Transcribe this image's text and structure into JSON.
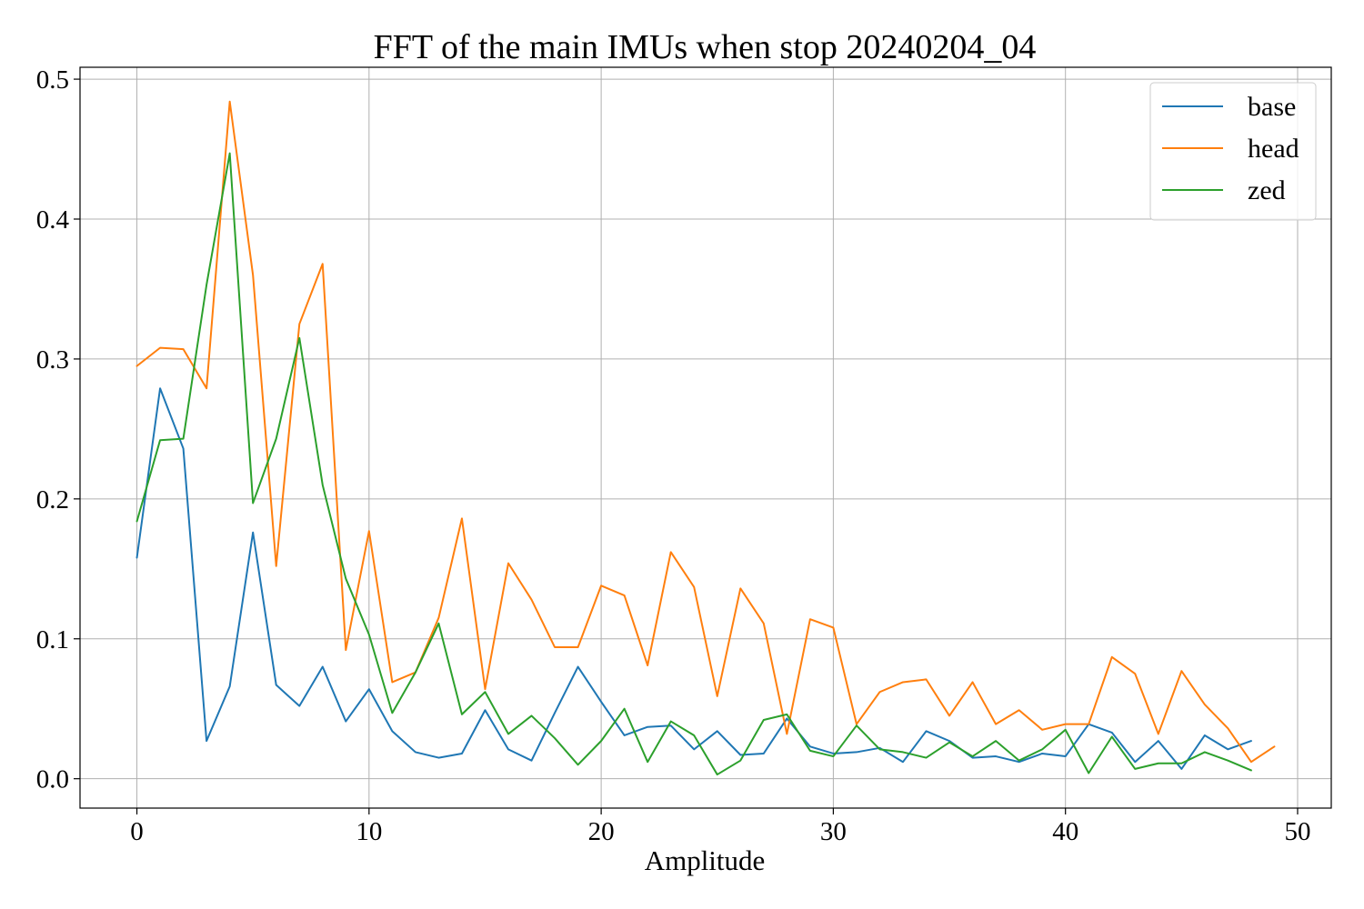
{
  "chart_data": {
    "type": "line",
    "title": "FFT of the main IMUs when stop 20240204_04",
    "xlabel": "Amplitude",
    "ylabel": "",
    "xlim": [
      -2.45,
      51.45
    ],
    "ylim": [
      -0.021,
      0.5085
    ],
    "xticks": [
      0,
      10,
      20,
      30,
      40,
      50
    ],
    "yticks": [
      0.0,
      0.1,
      0.2,
      0.3,
      0.4,
      0.5
    ],
    "ytick_labels": [
      "0.0",
      "0.1",
      "0.2",
      "0.3",
      "0.4",
      "0.5"
    ],
    "grid": true,
    "legend_position": "top-right",
    "series": [
      {
        "name": "base",
        "color": "#1f77b4",
        "x": [
          0,
          1,
          2,
          3,
          4,
          5,
          6,
          7,
          8,
          9,
          10,
          11,
          12,
          13,
          14,
          15,
          16,
          17,
          18,
          19,
          20,
          21,
          22,
          23,
          24,
          25,
          26,
          27,
          28,
          29,
          30,
          31,
          32,
          33,
          34,
          35,
          36,
          37,
          38,
          39,
          40,
          41,
          42,
          43,
          44,
          45,
          46,
          47,
          48
        ],
        "y": [
          0.158,
          0.279,
          0.236,
          0.027,
          0.066,
          0.176,
          0.067,
          0.052,
          0.08,
          0.041,
          0.064,
          0.034,
          0.019,
          0.015,
          0.018,
          0.049,
          0.021,
          0.013,
          0.047,
          0.08,
          0.055,
          0.031,
          0.037,
          0.038,
          0.021,
          0.034,
          0.017,
          0.018,
          0.043,
          0.023,
          0.018,
          0.019,
          0.022,
          0.012,
          0.034,
          0.027,
          0.015,
          0.016,
          0.012,
          0.018,
          0.016,
          0.039,
          0.033,
          0.012,
          0.027,
          0.007,
          0.031,
          0.021,
          0.027
        ]
      },
      {
        "name": "head",
        "color": "#ff7f0e",
        "x": [
          0,
          1,
          2,
          3,
          4,
          5,
          6,
          7,
          8,
          9,
          10,
          11,
          12,
          13,
          14,
          15,
          16,
          17,
          18,
          19,
          20,
          21,
          22,
          23,
          24,
          25,
          26,
          27,
          28,
          29,
          30,
          31,
          32,
          33,
          34,
          35,
          36,
          37,
          38,
          39,
          40,
          41,
          42,
          43,
          44,
          45,
          46,
          47,
          48,
          49
        ],
        "y": [
          0.295,
          0.308,
          0.307,
          0.279,
          0.484,
          0.36,
          0.152,
          0.325,
          0.368,
          0.092,
          0.177,
          0.069,
          0.076,
          0.115,
          0.186,
          0.064,
          0.154,
          0.128,
          0.094,
          0.094,
          0.138,
          0.131,
          0.081,
          0.162,
          0.137,
          0.059,
          0.136,
          0.111,
          0.032,
          0.114,
          0.108,
          0.039,
          0.062,
          0.069,
          0.071,
          0.045,
          0.069,
          0.039,
          0.049,
          0.035,
          0.039,
          0.039,
          0.087,
          0.075,
          0.032,
          0.077,
          0.053,
          0.036,
          0.012,
          0.023
        ]
      },
      {
        "name": "zed",
        "color": "#2ca02c",
        "x": [
          0,
          1,
          2,
          3,
          4,
          5,
          6,
          7,
          8,
          9,
          10,
          11,
          12,
          13,
          14,
          15,
          16,
          17,
          18,
          19,
          20,
          21,
          22,
          23,
          24,
          25,
          26,
          27,
          28,
          29,
          30,
          31,
          32,
          33,
          34,
          35,
          36,
          37,
          38,
          39,
          40,
          41,
          42,
          43,
          44,
          45,
          46,
          47,
          48
        ],
        "y": [
          0.184,
          0.242,
          0.243,
          0.353,
          0.447,
          0.197,
          0.243,
          0.315,
          0.21,
          0.143,
          0.103,
          0.047,
          0.076,
          0.111,
          0.046,
          0.062,
          0.032,
          0.045,
          0.029,
          0.01,
          0.027,
          0.05,
          0.012,
          0.041,
          0.031,
          0.003,
          0.013,
          0.042,
          0.046,
          0.02,
          0.016,
          0.038,
          0.021,
          0.019,
          0.015,
          0.026,
          0.016,
          0.027,
          0.013,
          0.021,
          0.035,
          0.004,
          0.03,
          0.007,
          0.011,
          0.011,
          0.019,
          0.013,
          0.006
        ]
      }
    ]
  }
}
